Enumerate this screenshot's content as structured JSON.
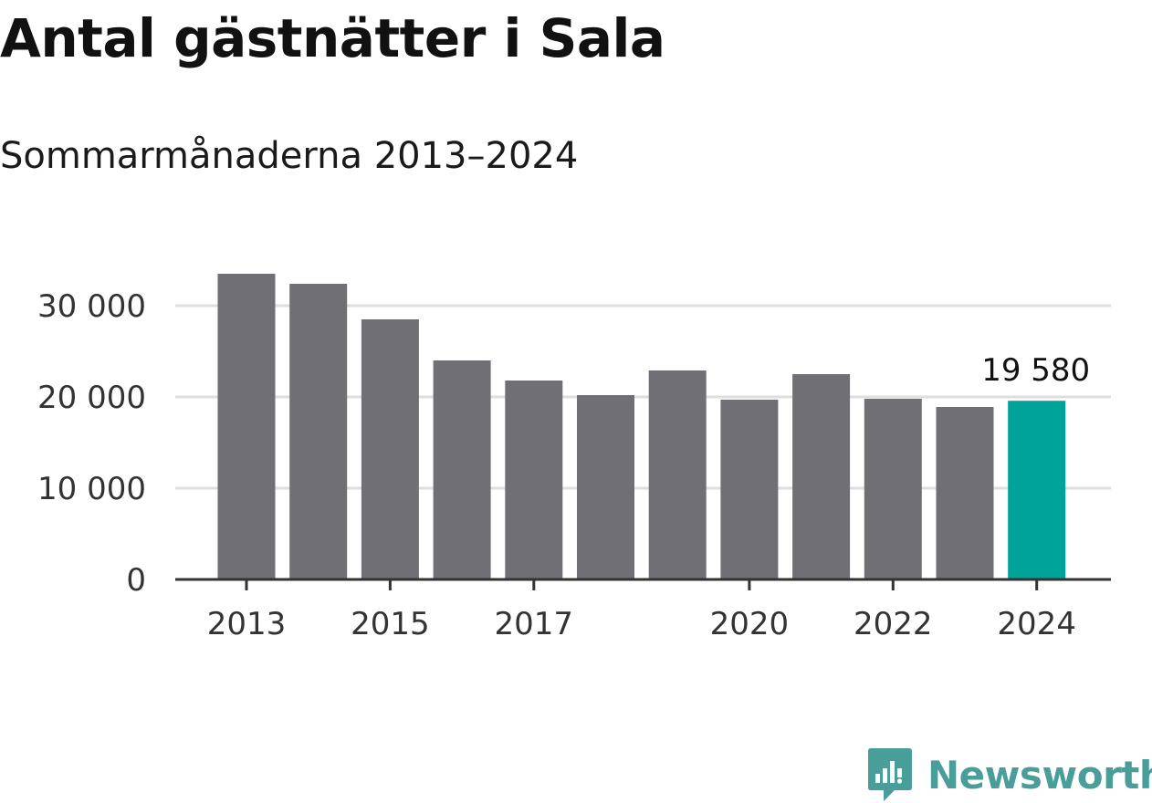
{
  "title": "Antal gästnätter i Sala",
  "subtitle": "Sommarmånaderna 2013–2024",
  "brand": {
    "name": "Newsworthy",
    "color": "#4a9e9a",
    "icon": "newsworthy-logo-icon"
  },
  "colors": {
    "bar": "#706f75",
    "highlight": "#00a399",
    "grid": "#dedede",
    "axis": "#333333"
  },
  "chart_data": {
    "type": "bar",
    "categories": [
      "2013",
      "2014",
      "2015",
      "2016",
      "2017",
      "2018",
      "2019",
      "2020",
      "2021",
      "2022",
      "2023",
      "2024"
    ],
    "values": [
      33500,
      32400,
      28500,
      24000,
      21800,
      20200,
      22900,
      19700,
      22500,
      19800,
      18900,
      19580
    ],
    "tick_labels": [
      "2013",
      "",
      "2015",
      "",
      "2017",
      "",
      "",
      "2020",
      "",
      "2022",
      "",
      "2024"
    ],
    "highlight_index": 11,
    "highlight_label": "19 580",
    "ylim": [
      0,
      35000
    ],
    "yticks": [
      0,
      10000,
      20000,
      30000
    ],
    "ytick_labels": [
      "0",
      "10 000",
      "20 000",
      "30 000"
    ],
    "title": "Antal gästnätter i Sala",
    "subtitle": "Sommarmånaderna 2013–2024",
    "xlabel": "",
    "ylabel": "",
    "grid": true,
    "legend": "none"
  }
}
